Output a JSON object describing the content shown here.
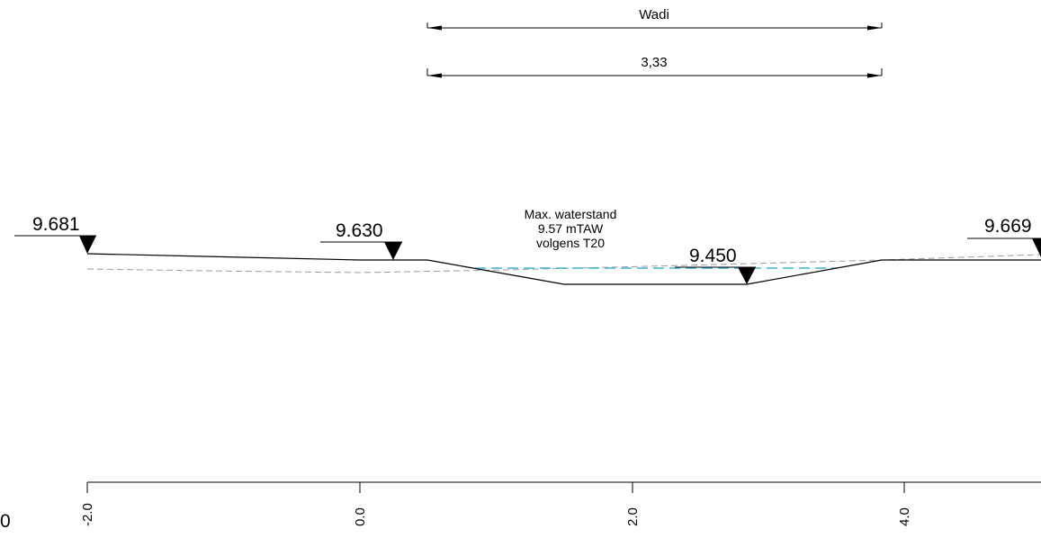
{
  "dimensions": {
    "top_label": "Wadi",
    "bottom_label": "3,33"
  },
  "elevations": [
    {
      "id": "left",
      "label": "9.681"
    },
    {
      "id": "center-left",
      "label": "9.630"
    },
    {
      "id": "bottom",
      "label": "9.450"
    },
    {
      "id": "right",
      "label": "9.669"
    }
  ],
  "water_note": {
    "line1": "Max. waterstand",
    "line2": "9.57 mTAW",
    "line3": "volgens T20"
  },
  "axis": {
    "ticks": [
      "-2.0",
      "0.0",
      "2.0",
      "4.0"
    ],
    "edge_label": "0"
  },
  "colors": {
    "profile_line": "#000000",
    "reference_line": "#9a9a9a",
    "water_line": "#3fb2d8"
  }
}
